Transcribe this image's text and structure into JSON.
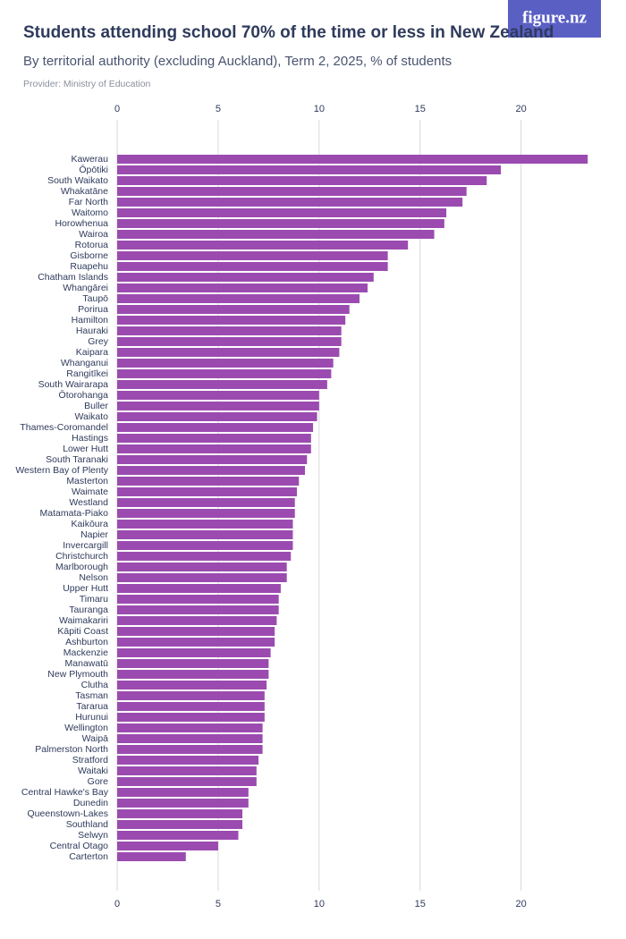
{
  "logo": "figure.nz",
  "chart_data": {
    "type": "bar",
    "orientation": "horizontal",
    "title": "Students attending school 70% of the time or less in New Zealand",
    "subtitle": "By territorial authority (excluding Auckland), Term 2, 2025, % of students",
    "provider": "Provider: Ministry of Education",
    "color": "#9b4bb0",
    "grid": true,
    "xlim": [
      0,
      24
    ],
    "xticks": [
      0,
      5,
      10,
      15,
      20
    ],
    "categories": [
      "Kawerau",
      "Ōpōtiki",
      "South Waikato",
      "Whakatāne",
      "Far North",
      "Waitomo",
      "Horowhenua",
      "Wairoa",
      "Rotorua",
      "Gisborne",
      "Ruapehu",
      "Chatham Islands",
      "Whangārei",
      "Taupō",
      "Porirua",
      "Hamilton",
      "Hauraki",
      "Grey",
      "Kaipara",
      "Whanganui",
      "Rangitīkei",
      "South Wairarapa",
      "Ōtorohanga",
      "Buller",
      "Waikato",
      "Thames-Coromandel",
      "Hastings",
      "Lower Hutt",
      "South Taranaki",
      "Western Bay of Plenty",
      "Masterton",
      "Waimate",
      "Westland",
      "Matamata-Piako",
      "Kaikōura",
      "Napier",
      "Invercargill",
      "Christchurch",
      "Marlborough",
      "Nelson",
      "Upper Hutt",
      "Timaru",
      "Tauranga",
      "Waimakariri",
      "Kāpiti Coast",
      "Ashburton",
      "Mackenzie",
      "Manawatū",
      "New Plymouth",
      "Clutha",
      "Tasman",
      "Tararua",
      "Hurunui",
      "Wellington",
      "Waipā",
      "Palmerston North",
      "Stratford",
      "Waitaki",
      "Gore",
      "Central Hawke's Bay",
      "Dunedin",
      "Queenstown-Lakes",
      "Southland",
      "Selwyn",
      "Central Otago",
      "Carterton"
    ],
    "values": [
      23.3,
      19.0,
      18.3,
      17.3,
      17.1,
      16.3,
      16.2,
      15.7,
      14.4,
      13.4,
      13.4,
      12.7,
      12.4,
      12.0,
      11.5,
      11.3,
      11.1,
      11.1,
      11.0,
      10.7,
      10.6,
      10.4,
      10.0,
      10.0,
      9.9,
      9.7,
      9.6,
      9.6,
      9.4,
      9.3,
      9.0,
      8.9,
      8.8,
      8.8,
      8.7,
      8.7,
      8.7,
      8.6,
      8.4,
      8.4,
      8.1,
      8.0,
      8.0,
      7.9,
      7.8,
      7.8,
      7.6,
      7.5,
      7.5,
      7.4,
      7.3,
      7.3,
      7.3,
      7.2,
      7.2,
      7.2,
      7.0,
      6.9,
      6.9,
      6.5,
      6.5,
      6.2,
      6.2,
      6.0,
      5.0,
      3.4
    ]
  }
}
